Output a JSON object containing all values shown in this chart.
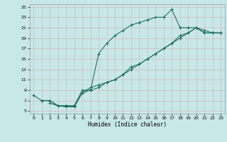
{
  "xlabel": "Humidex (Indice chaleur)",
  "xlim": [
    -0.5,
    23.5
  ],
  "ylim": [
    4.5,
    25.5
  ],
  "xticks": [
    0,
    1,
    2,
    3,
    4,
    5,
    6,
    7,
    8,
    9,
    10,
    11,
    12,
    13,
    14,
    15,
    16,
    17,
    18,
    19,
    20,
    21,
    22,
    23
  ],
  "yticks": [
    5,
    7,
    9,
    11,
    13,
    15,
    17,
    19,
    21,
    23,
    25
  ],
  "bg_color": "#c8e8e8",
  "grid_color": "#d0b8b8",
  "line_color": "#1a6b5a",
  "line1_x": [
    0,
    1,
    2,
    3,
    4,
    5,
    6,
    7,
    8,
    9,
    10,
    11,
    12,
    13,
    14,
    15,
    16,
    17,
    18,
    19,
    20,
    21,
    22,
    23
  ],
  "line1_y": [
    8,
    7,
    7,
    6,
    6,
    6,
    8.5,
    9,
    16,
    18,
    19.5,
    20.5,
    21.5,
    22,
    22.5,
    23,
    23,
    24.5,
    21,
    21,
    21,
    20,
    20,
    20
  ],
  "line2_x": [
    2,
    3,
    4,
    5,
    6,
    7,
    8,
    9,
    10,
    11,
    12,
    13,
    14,
    15,
    16,
    17,
    18,
    19,
    20,
    21,
    22,
    23
  ],
  "line2_y": [
    6.5,
    6,
    5.8,
    5.8,
    8.5,
    9.5,
    10,
    10.5,
    11,
    12,
    13,
    14,
    15,
    16,
    17,
    18,
    19,
    20,
    21,
    20.5,
    20,
    20
  ],
  "line3_x": [
    1,
    2,
    3,
    4,
    5,
    6,
    7,
    8,
    9,
    10,
    11,
    12,
    13,
    14,
    15,
    16,
    17,
    18,
    19,
    20,
    21,
    22,
    23
  ],
  "line3_y": [
    7,
    7,
    6,
    6,
    6,
    9,
    9,
    9.5,
    10.5,
    11,
    12,
    13.5,
    14,
    15,
    16,
    17,
    18,
    19.5,
    20,
    21,
    20,
    20,
    20
  ]
}
